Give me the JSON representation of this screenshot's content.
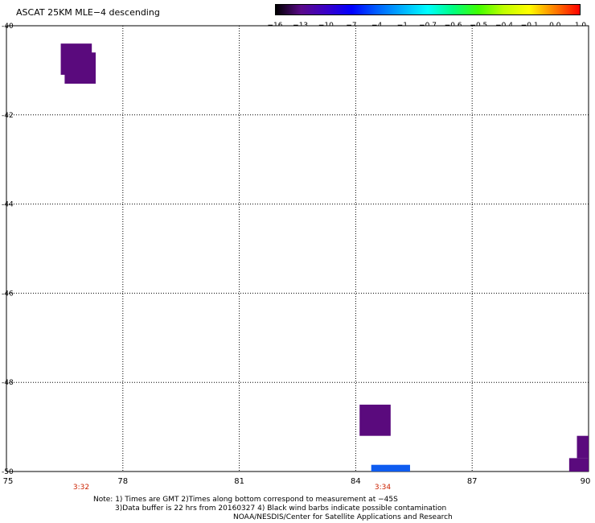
{
  "title": "ASCAT 25KM MLE−4 descending",
  "colorbar": {
    "labels": [
      "−16",
      "−13",
      "−10",
      "−7",
      "−4",
      "−1",
      "−0.7",
      "−0.6",
      "−0.5",
      "−0.4",
      "−0.1",
      "0.0",
      "1.0"
    ],
    "colors": [
      "#000000",
      "#5a0a8a",
      "#3a00c8",
      "#0000ff",
      "#0060ff",
      "#00b0ff",
      "#00ffff",
      "#00ff80",
      "#40ff00",
      "#c0ff00",
      "#ffff00",
      "#ff8000",
      "#ff0000"
    ]
  },
  "axes": {
    "x_ticks": [
      "75",
      "78",
      "81",
      "84",
      "87",
      "90"
    ],
    "y_ticks": [
      "-40",
      "-42",
      "-44",
      "-46",
      "-48",
      "-50"
    ]
  },
  "time_labels": [
    {
      "text": "3:32"
    },
    {
      "text": "3:34"
    }
  ],
  "notes": {
    "line1": "Note: 1) Times are GMT 2)Times along bottom correspond to measurement at −45S",
    "line2": "3)Data buffer is 22 hrs from 20160327 4) Black wind barbs indicate possible contamination",
    "line3": "NOAA/NESDIS/Center for Satellite Applications and Research"
  },
  "chart_data": {
    "type": "heatmap",
    "title": "ASCAT 25KM MLE−4 descending",
    "xlim": [
      75,
      90
    ],
    "ylim": [
      -50,
      -40
    ],
    "grid": true,
    "cells": [
      {
        "lon_min": 76.4,
        "lon_max": 77.2,
        "lat_min": -41.1,
        "lat_max": -40.4,
        "color": "#5a0a7d"
      },
      {
        "lon_min": 76.5,
        "lon_max": 77.3,
        "lat_min": -41.3,
        "lat_max": -40.6,
        "color": "#5a0a7d"
      },
      {
        "lon_min": 84.1,
        "lon_max": 84.9,
        "lat_min": -49.2,
        "lat_max": -48.5,
        "color": "#5a0a7d"
      },
      {
        "lon_min": 84.4,
        "lon_max": 85.4,
        "lat_min": -50.0,
        "lat_max": -49.85,
        "color": "#0f5cf0"
      },
      {
        "lon_min": 89.5,
        "lon_max": 90.0,
        "lat_min": -50.0,
        "lat_max": -49.7,
        "color": "#5a0a7d"
      },
      {
        "lon_min": 89.7,
        "lon_max": 90.0,
        "lat_min": -49.7,
        "lat_max": -49.2,
        "color": "#5a0a7d"
      }
    ]
  }
}
